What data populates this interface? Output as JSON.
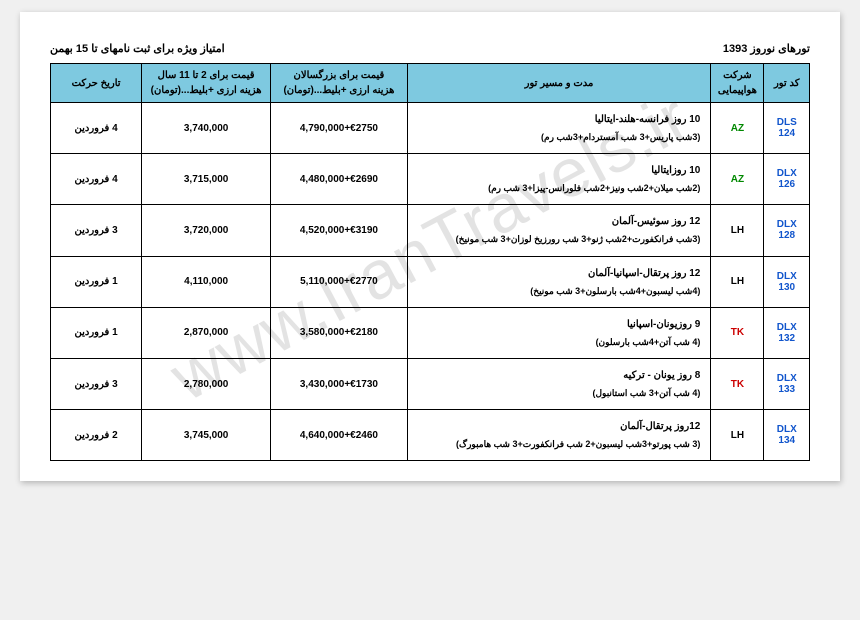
{
  "header": {
    "title_right": "تورهای نوروز 1393",
    "title_left": "امتیاز ویژه برای ثبت نامهای تا 15 بهمن"
  },
  "watermark": "www.IranTravels.ir",
  "table": {
    "headers": {
      "code": "کد تور",
      "airline": "شرکت هواپیمایی",
      "route": "مدت و مسیر تور",
      "price_adult": "قیمت برای بزرگسالان<br>هزینه ارزی +بلیط...(تومان)",
      "price_child": "قیمت برای 2 تا 11 سال<br>هزینه ارزی +بلیط...(تومان)",
      "depart": "تاریخ حرکت"
    },
    "rows": [
      {
        "code": "DLS 124",
        "airline": "AZ",
        "airline_color": "#008800",
        "route_main": "10 روز فرانسه-هلند-ایتالیا",
        "route_detail": "(3شب پاریس+3 شب آمستردام+3شب رم)",
        "price_adult": "4,790,000+€2750",
        "price_child": "3,740,000",
        "depart": "4 فروردین"
      },
      {
        "code": "DLX 126",
        "airline": "AZ",
        "airline_color": "#008800",
        "route_main": "10 روزایتالیا",
        "route_detail": "(2شب میلان+2شب ونیز+2شب فلورانس-پیزا+3 شب رم)",
        "price_adult": "4,480,000+€2690",
        "price_child": "3,715,000",
        "depart": "4 فروردین"
      },
      {
        "code": "DLX 128",
        "airline": "LH",
        "airline_color": "#000000",
        "route_main": "12 روز سوئیس-آلمان",
        "route_detail": "(3شب فرانکفورت+2شب ژنو+3 شب رورزیخ لوزان+3 شب مونیخ)",
        "price_adult": "4,520,000+€3190",
        "price_child": "3,720,000",
        "depart": "3 فروردین"
      },
      {
        "code": "DLX 130",
        "airline": "LH",
        "airline_color": "#000000",
        "route_main": "12 روز پرتقال-اسپانیا-آلمان",
        "route_detail": "(4شب لیسبون+4شب بارسلون+3 شب مونیخ)",
        "price_adult": "5,110,000+€2770",
        "price_child": "4,110,000",
        "depart": "1 فروردین"
      },
      {
        "code": "DLX 132",
        "airline": "TK",
        "airline_color": "#cc0000",
        "route_main": "9 روزیونان-اسپانیا",
        "route_detail": "(4 شب آتن+4شب بارسلون)",
        "price_adult": "3,580,000+€2180",
        "price_child": "2,870,000",
        "depart": "1 فروردین"
      },
      {
        "code": "DLX 133",
        "airline": "TK",
        "airline_color": "#cc0000",
        "route_main": "8 روز یونان - ترکیه",
        "route_detail": "(4 شب آتن+3 شب استانبول)",
        "price_adult": "3,430,000+€1730",
        "price_child": "2,780,000",
        "depart": "3 فروردین"
      },
      {
        "code": "DLX 134",
        "airline": "LH",
        "airline_color": "#000000",
        "route_main": "12روز پرتقال-آلمان",
        "route_detail": "(3 شب پورتو+3شب لیسبون+2 شب فرانکفورت+3 شب هامبورگ)",
        "price_adult": "4,640,000+€2460",
        "price_child": "3,745,000",
        "depart": "2 فروردین"
      }
    ]
  }
}
